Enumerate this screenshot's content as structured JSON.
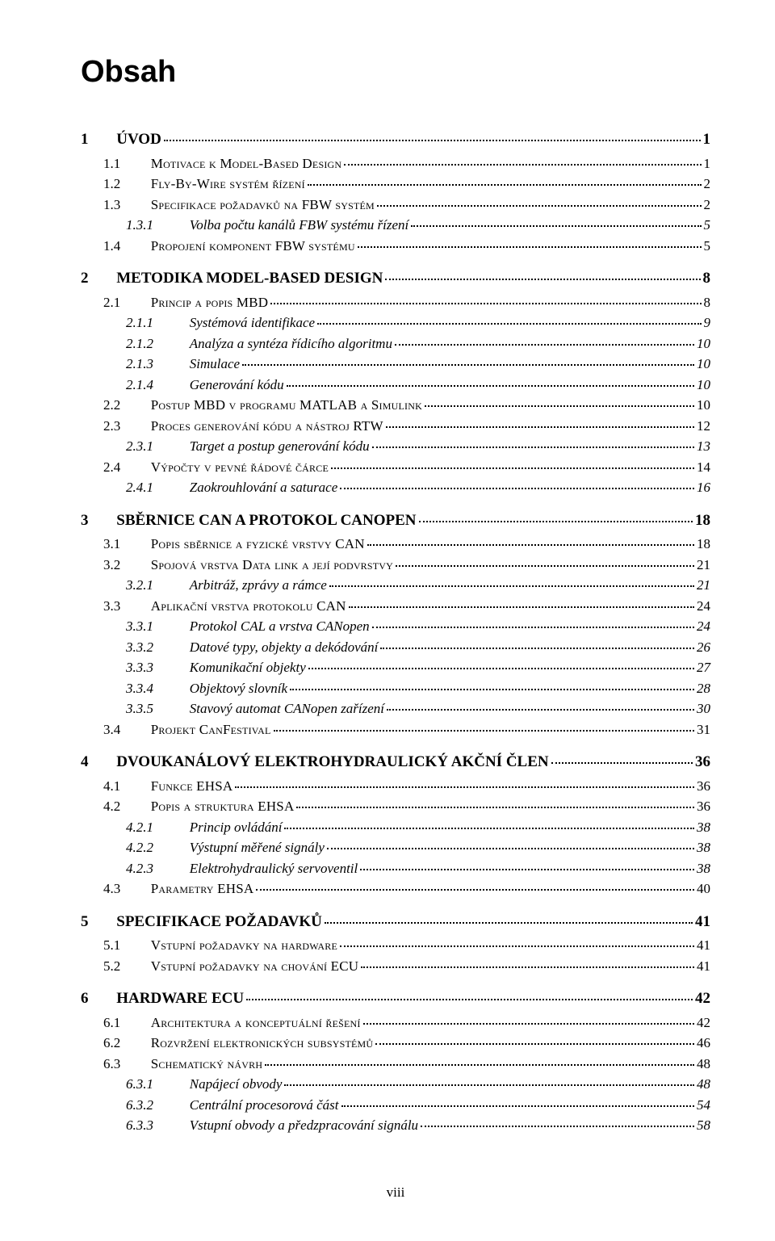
{
  "title": "Obsah",
  "page_footer": "viii",
  "entries": [
    {
      "level": 1,
      "num": "1",
      "label": "ÚVOD",
      "page": "1"
    },
    {
      "level": 2,
      "num": "1.1",
      "label": "Motivace k Model-Based Design",
      "page": "1"
    },
    {
      "level": 2,
      "num": "1.2",
      "label": "Fly-By-Wire systém řízení",
      "page": "2"
    },
    {
      "level": 2,
      "num": "1.3",
      "label": "Specifikace požadavků na FBW systém",
      "page": "2"
    },
    {
      "level": 3,
      "num": "1.3.1",
      "label": "Volba počtu kanálů FBW systému řízení",
      "page": "5"
    },
    {
      "level": 2,
      "num": "1.4",
      "label": "Propojení komponent FBW systému",
      "page": "5"
    },
    {
      "level": 1,
      "num": "2",
      "label": "METODIKA MODEL-BASED DESIGN",
      "page": "8"
    },
    {
      "level": 2,
      "num": "2.1",
      "label": "Princip a popis MBD",
      "page": "8"
    },
    {
      "level": 3,
      "num": "2.1.1",
      "label": "Systémová identifikace",
      "page": "9"
    },
    {
      "level": 3,
      "num": "2.1.2",
      "label": "Analýza a syntéza řídicího algoritmu",
      "page": "10"
    },
    {
      "level": 3,
      "num": "2.1.3",
      "label": "Simulace",
      "page": "10"
    },
    {
      "level": 3,
      "num": "2.1.4",
      "label": "Generování kódu",
      "page": "10"
    },
    {
      "level": 2,
      "num": "2.2",
      "label": "Postup MBD v programu MATLAB a Simulink",
      "page": "10"
    },
    {
      "level": 2,
      "num": "2.3",
      "label": "Proces generování kódu a nástroj RTW",
      "page": "12"
    },
    {
      "level": 3,
      "num": "2.3.1",
      "label": "Target a postup generování kódu",
      "page": "13"
    },
    {
      "level": 2,
      "num": "2.4",
      "label": "Výpočty v pevné řádové čárce",
      "page": "14"
    },
    {
      "level": 3,
      "num": "2.4.1",
      "label": "Zaokrouhlování a saturace",
      "page": "16"
    },
    {
      "level": 1,
      "num": "3",
      "label": "SBĚRNICE CAN A PROTOKOL CANOPEN",
      "page": "18"
    },
    {
      "level": 2,
      "num": "3.1",
      "label": "Popis sběrnice a fyzické vrstvy CAN",
      "page": "18"
    },
    {
      "level": 2,
      "num": "3.2",
      "label": "Spojová vrstva Data link a její podvrstvy",
      "page": "21"
    },
    {
      "level": 3,
      "num": "3.2.1",
      "label": "Arbitráž, zprávy a rámce",
      "page": "21"
    },
    {
      "level": 2,
      "num": "3.3",
      "label": "Aplikační vrstva protokolu CAN",
      "page": "24"
    },
    {
      "level": 3,
      "num": "3.3.1",
      "label": "Protokol CAL a vrstva CANopen",
      "page": "24"
    },
    {
      "level": 3,
      "num": "3.3.2",
      "label": "Datové typy, objekty a dekódování",
      "page": "26"
    },
    {
      "level": 3,
      "num": "3.3.3",
      "label": "Komunikační objekty",
      "page": "27"
    },
    {
      "level": 3,
      "num": "3.3.4",
      "label": "Objektový slovník",
      "page": "28"
    },
    {
      "level": 3,
      "num": "3.3.5",
      "label": "Stavový automat CANopen zařízení",
      "page": "30"
    },
    {
      "level": 2,
      "num": "3.4",
      "label": "Projekt CanFestival",
      "page": "31"
    },
    {
      "level": 1,
      "num": "4",
      "label": "DVOUKANÁLOVÝ ELEKTROHYDRAULICKÝ AKČNÍ ČLEN",
      "page": "36"
    },
    {
      "level": 2,
      "num": "4.1",
      "label": "Funkce EHSA",
      "page": "36"
    },
    {
      "level": 2,
      "num": "4.2",
      "label": "Popis a struktura EHSA",
      "page": "36"
    },
    {
      "level": 3,
      "num": "4.2.1",
      "label": "Princip ovládání",
      "page": "38"
    },
    {
      "level": 3,
      "num": "4.2.2",
      "label": "Výstupní měřené signály",
      "page": "38"
    },
    {
      "level": 3,
      "num": "4.2.3",
      "label": "Elektrohydraulický servoventil",
      "page": "38"
    },
    {
      "level": 2,
      "num": "4.3",
      "label": "Parametry EHSA",
      "page": "40"
    },
    {
      "level": 1,
      "num": "5",
      "label": "SPECIFIKACE POŽADAVKŮ",
      "page": "41"
    },
    {
      "level": 2,
      "num": "5.1",
      "label": "Vstupní požadavky na hardware",
      "page": "41"
    },
    {
      "level": 2,
      "num": "5.2",
      "label": "Vstupní požadavky na chování ECU",
      "page": "41"
    },
    {
      "level": 1,
      "num": "6",
      "label": "HARDWARE ECU",
      "page": "42"
    },
    {
      "level": 2,
      "num": "6.1",
      "label": "Architektura a konceptuální řešení",
      "page": "42"
    },
    {
      "level": 2,
      "num": "6.2",
      "label": "Rozvržení elektronických subsystémů",
      "page": "46"
    },
    {
      "level": 2,
      "num": "6.3",
      "label": "Schematický návrh",
      "page": "48"
    },
    {
      "level": 3,
      "num": "6.3.1",
      "label": "Napájecí obvody",
      "page": "48"
    },
    {
      "level": 3,
      "num": "6.3.2",
      "label": "Centrální procesorová část",
      "page": "54"
    },
    {
      "level": 3,
      "num": "6.3.3",
      "label": "Vstupní obvody a předzpracování signálu",
      "page": "58"
    }
  ]
}
